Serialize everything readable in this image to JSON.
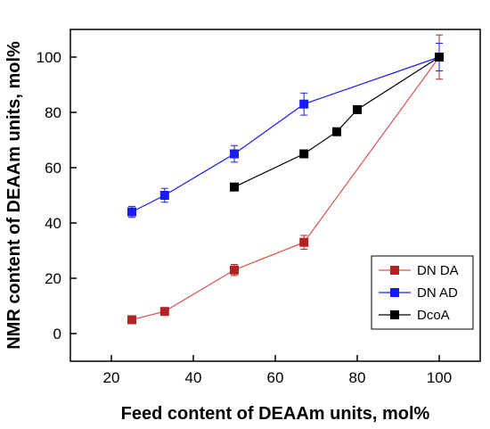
{
  "chart_data": {
    "type": "line",
    "title": "",
    "xlabel": "Feed content of DEAAm units, mol%",
    "ylabel": "NMR content of DEAAm units, mol%",
    "xlim": [
      10,
      110
    ],
    "ylim": [
      -10,
      110
    ],
    "xticks": [
      20,
      40,
      60,
      80,
      100
    ],
    "yticks": [
      0,
      20,
      40,
      60,
      80,
      100
    ],
    "grid": false,
    "legend_position": "bottom-right",
    "series": [
      {
        "name": "DN DA",
        "color": "#b22222",
        "line_color": "#e05050",
        "x": [
          25,
          33,
          50,
          67,
          100
        ],
        "y": [
          5,
          8,
          23,
          33,
          100
        ],
        "err": [
          0,
          0,
          2,
          2.5,
          8
        ]
      },
      {
        "name": "DN AD",
        "color": "#1a1aff",
        "line_color": "#1a1aff",
        "x": [
          25,
          33,
          50,
          67,
          100
        ],
        "y": [
          44,
          50,
          65,
          83,
          100
        ],
        "err": [
          2,
          2.5,
          3,
          4,
          5
        ]
      },
      {
        "name": "DcoA",
        "color": "#000000",
        "line_color": "#000000",
        "x": [
          50,
          67,
          75,
          80,
          100
        ],
        "y": [
          53,
          65,
          73,
          81,
          100
        ],
        "err": [
          0,
          0,
          0,
          0,
          0
        ]
      }
    ]
  }
}
